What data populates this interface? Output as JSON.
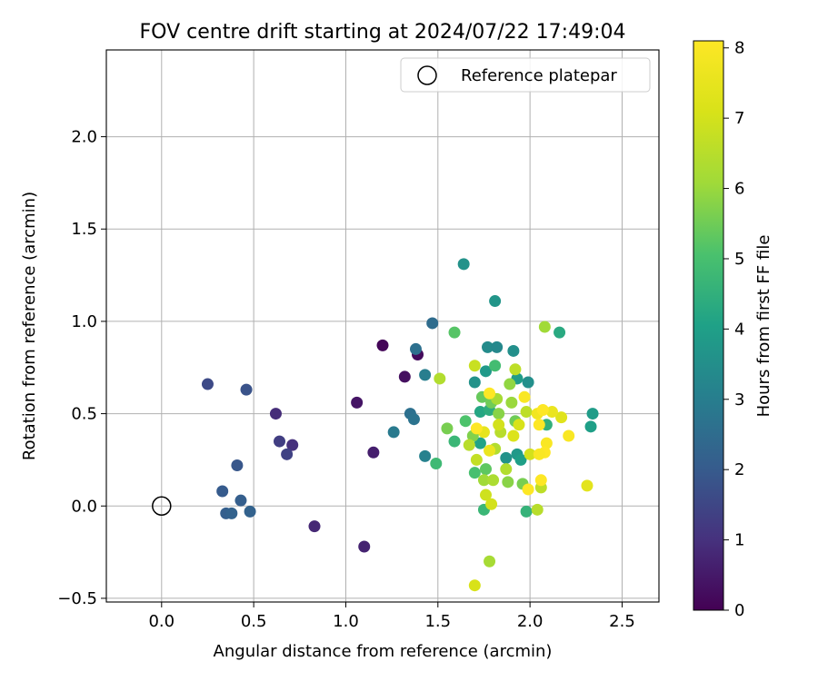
{
  "chart_data": {
    "type": "scatter",
    "title": "FOV centre drift starting at 2024/07/22 17:49:04",
    "xlabel": "Angular distance from reference (arcmin)",
    "ylabel": "Rotation from reference (arcmin)",
    "xlim": [
      -0.3,
      2.7
    ],
    "ylim": [
      -0.52,
      2.47
    ],
    "xticks": [
      0.0,
      0.5,
      1.0,
      1.5,
      2.0,
      2.5
    ],
    "xtick_labels": [
      "0.0",
      "0.5",
      "1.0",
      "1.5",
      "2.0",
      "2.5"
    ],
    "yticks": [
      -0.5,
      0.0,
      0.5,
      1.0,
      1.5,
      2.0
    ],
    "ytick_labels": [
      "−0.5",
      "0.0",
      "0.5",
      "1.0",
      "1.5",
      "2.0"
    ],
    "grid": true,
    "legend": {
      "position": "top-right",
      "entries": [
        "Reference platepar"
      ]
    },
    "reference_point": {
      "name": "Reference platepar",
      "x": 0.0,
      "y": 0.0,
      "marker": "open-circle"
    },
    "colorbar": {
      "label": "Hours from first FF file",
      "colormap": "viridis",
      "range": [
        0,
        8.1
      ],
      "ticks": [
        0,
        1,
        2,
        3,
        4,
        5,
        6,
        7,
        8
      ],
      "tick_labels": [
        "0",
        "1",
        "2",
        "3",
        "4",
        "5",
        "6",
        "7",
        "8"
      ]
    },
    "points": [
      {
        "x": 1.2,
        "y": 0.87,
        "h": 0.1
      },
      {
        "x": 1.39,
        "y": 0.82,
        "h": 0.2
      },
      {
        "x": 1.32,
        "y": 0.7,
        "h": 0.3
      },
      {
        "x": 1.06,
        "y": 0.56,
        "h": 0.4
      },
      {
        "x": 1.15,
        "y": 0.29,
        "h": 0.6
      },
      {
        "x": 1.1,
        "y": -0.22,
        "h": 0.7
      },
      {
        "x": 0.83,
        "y": -0.11,
        "h": 0.8
      },
      {
        "x": 0.62,
        "y": 0.5,
        "h": 0.9
      },
      {
        "x": 0.71,
        "y": 0.33,
        "h": 1.0
      },
      {
        "x": 0.64,
        "y": 0.35,
        "h": 1.3
      },
      {
        "x": 0.68,
        "y": 0.28,
        "h": 1.4
      },
      {
        "x": 0.25,
        "y": 0.66,
        "h": 1.6
      },
      {
        "x": 0.46,
        "y": 0.63,
        "h": 1.8
      },
      {
        "x": 0.41,
        "y": 0.22,
        "h": 1.9
      },
      {
        "x": 0.33,
        "y": 0.08,
        "h": 2.0
      },
      {
        "x": 0.43,
        "y": 0.03,
        "h": 2.1
      },
      {
        "x": 0.35,
        "y": -0.04,
        "h": 2.1
      },
      {
        "x": 0.38,
        "y": -0.04,
        "h": 2.2
      },
      {
        "x": 0.48,
        "y": -0.03,
        "h": 2.2
      },
      {
        "x": 1.47,
        "y": 0.99,
        "h": 2.5
      },
      {
        "x": 1.38,
        "y": 0.85,
        "h": 2.6
      },
      {
        "x": 1.35,
        "y": 0.5,
        "h": 2.6
      },
      {
        "x": 1.37,
        "y": 0.47,
        "h": 2.7
      },
      {
        "x": 1.26,
        "y": 0.4,
        "h": 2.9
      },
      {
        "x": 1.43,
        "y": 0.71,
        "h": 3.0
      },
      {
        "x": 1.43,
        "y": 0.27,
        "h": 3.1
      },
      {
        "x": 1.64,
        "y": 1.31,
        "h": 3.6
      },
      {
        "x": 1.81,
        "y": 1.11,
        "h": 3.7
      },
      {
        "x": 1.77,
        "y": 0.86,
        "h": 3.4
      },
      {
        "x": 1.82,
        "y": 0.86,
        "h": 3.3
      },
      {
        "x": 1.91,
        "y": 0.84,
        "h": 3.5
      },
      {
        "x": 1.7,
        "y": 0.67,
        "h": 3.6
      },
      {
        "x": 1.76,
        "y": 0.73,
        "h": 3.8
      },
      {
        "x": 1.93,
        "y": 0.69,
        "h": 3.9
      },
      {
        "x": 1.99,
        "y": 0.67,
        "h": 3.5
      },
      {
        "x": 2.34,
        "y": 0.5,
        "h": 3.9
      },
      {
        "x": 2.33,
        "y": 0.43,
        "h": 4.0
      },
      {
        "x": 2.16,
        "y": 0.94,
        "h": 4.3
      },
      {
        "x": 1.87,
        "y": 0.26,
        "h": 3.6
      },
      {
        "x": 1.93,
        "y": 0.28,
        "h": 3.8
      },
      {
        "x": 1.95,
        "y": 0.25,
        "h": 4.0
      },
      {
        "x": 1.73,
        "y": 0.51,
        "h": 4.2
      },
      {
        "x": 1.78,
        "y": 0.52,
        "h": 4.4
      },
      {
        "x": 1.73,
        "y": 0.34,
        "h": 4.1
      },
      {
        "x": 1.98,
        "y": -0.03,
        "h": 4.6
      },
      {
        "x": 1.75,
        "y": -0.02,
        "h": 4.7
      },
      {
        "x": 2.09,
        "y": 0.44,
        "h": 4.5
      },
      {
        "x": 1.59,
        "y": 0.35,
        "h": 4.7
      },
      {
        "x": 1.49,
        "y": 0.23,
        "h": 4.8
      },
      {
        "x": 1.81,
        "y": 0.76,
        "h": 4.9
      },
      {
        "x": 1.59,
        "y": 0.94,
        "h": 5.2
      },
      {
        "x": 1.65,
        "y": 0.46,
        "h": 5.1
      },
      {
        "x": 1.7,
        "y": 0.18,
        "h": 5.0
      },
      {
        "x": 1.76,
        "y": 0.2,
        "h": 5.3
      },
      {
        "x": 1.74,
        "y": 0.59,
        "h": 5.4
      },
      {
        "x": 1.79,
        "y": 0.56,
        "h": 5.5
      },
      {
        "x": 1.55,
        "y": 0.42,
        "h": 5.6
      },
      {
        "x": 1.69,
        "y": 0.38,
        "h": 5.7
      },
      {
        "x": 1.83,
        "y": 0.5,
        "h": 5.8
      },
      {
        "x": 1.92,
        "y": 0.46,
        "h": 5.5
      },
      {
        "x": 1.96,
        "y": 0.12,
        "h": 5.6
      },
      {
        "x": 2.08,
        "y": 0.97,
        "h": 6.1
      },
      {
        "x": 1.78,
        "y": -0.3,
        "h": 6.2
      },
      {
        "x": 1.89,
        "y": 0.66,
        "h": 5.9
      },
      {
        "x": 1.82,
        "y": 0.58,
        "h": 6.2
      },
      {
        "x": 1.9,
        "y": 0.56,
        "h": 6.0
      },
      {
        "x": 1.51,
        "y": 0.69,
        "h": 6.4
      },
      {
        "x": 1.75,
        "y": 0.14,
        "h": 6.1
      },
      {
        "x": 1.8,
        "y": 0.14,
        "h": 6.3
      },
      {
        "x": 1.87,
        "y": 0.2,
        "h": 6.4
      },
      {
        "x": 1.67,
        "y": 0.33,
        "h": 6.5
      },
      {
        "x": 1.81,
        "y": 0.31,
        "h": 6.4
      },
      {
        "x": 1.84,
        "y": 0.4,
        "h": 6.5
      },
      {
        "x": 1.92,
        "y": 0.74,
        "h": 6.6
      },
      {
        "x": 1.98,
        "y": 0.51,
        "h": 6.6
      },
      {
        "x": 2.04,
        "y": -0.02,
        "h": 6.5
      },
      {
        "x": 2.06,
        "y": 0.1,
        "h": 6.6
      },
      {
        "x": 1.7,
        "y": 0.76,
        "h": 6.8
      },
      {
        "x": 1.71,
        "y": 0.25,
        "h": 6.7
      },
      {
        "x": 1.76,
        "y": 0.06,
        "h": 6.9
      },
      {
        "x": 1.79,
        "y": 0.01,
        "h": 7.0
      },
      {
        "x": 1.7,
        "y": -0.43,
        "h": 7.1
      },
      {
        "x": 1.83,
        "y": 0.44,
        "h": 7.0
      },
      {
        "x": 1.91,
        "y": 0.38,
        "h": 7.2
      },
      {
        "x": 1.94,
        "y": 0.44,
        "h": 7.1
      },
      {
        "x": 2.0,
        "y": 0.28,
        "h": 7.0
      },
      {
        "x": 2.17,
        "y": 0.48,
        "h": 7.3
      },
      {
        "x": 2.31,
        "y": 0.11,
        "h": 7.4
      },
      {
        "x": 2.12,
        "y": 0.51,
        "h": 7.6
      },
      {
        "x": 1.75,
        "y": 0.4,
        "h": 7.5
      },
      {
        "x": 1.78,
        "y": 0.3,
        "h": 7.6
      },
      {
        "x": 2.04,
        "y": 0.5,
        "h": 7.8
      },
      {
        "x": 2.21,
        "y": 0.38,
        "h": 8.0
      },
      {
        "x": 1.97,
        "y": 0.59,
        "h": 8.0
      },
      {
        "x": 1.78,
        "y": 0.61,
        "h": 8.1
      },
      {
        "x": 1.71,
        "y": 0.42,
        "h": 8.1
      },
      {
        "x": 2.05,
        "y": 0.44,
        "h": 8.1
      },
      {
        "x": 2.07,
        "y": 0.52,
        "h": 8.1
      },
      {
        "x": 2.09,
        "y": 0.34,
        "h": 8.0
      },
      {
        "x": 2.08,
        "y": 0.29,
        "h": 8.1
      },
      {
        "x": 2.05,
        "y": 0.28,
        "h": 8.0
      },
      {
        "x": 2.06,
        "y": 0.14,
        "h": 8.1
      },
      {
        "x": 1.99,
        "y": 0.09,
        "h": 8.1
      },
      {
        "x": 1.88,
        "y": 0.13,
        "h": 5.8
      }
    ]
  }
}
